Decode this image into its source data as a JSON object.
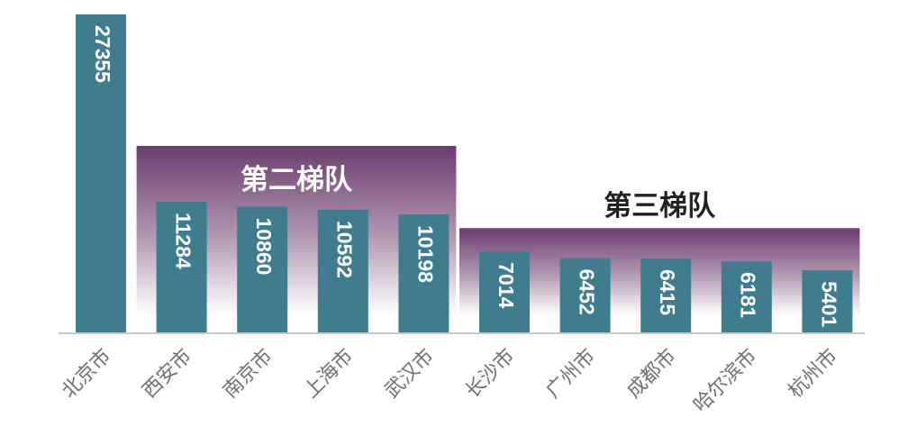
{
  "chart_data": {
    "type": "bar",
    "title": "",
    "xlabel": "",
    "ylabel": "",
    "categories": [
      "北京市",
      "西安市",
      "南京市",
      "上海市",
      "武汉市",
      "长沙市",
      "广州市",
      "成都市",
      "哈尔滨市",
      "杭州市"
    ],
    "values": [
      27355,
      11284,
      10860,
      10592,
      10198,
      7014,
      6452,
      6415,
      6181,
      5401
    ],
    "ylim": [
      0,
      27355
    ],
    "grid": false,
    "bar_color": "#3f7d8e",
    "value_label_color": "#ffffff",
    "annotations": [
      {
        "text": "第二梯队",
        "start_index": 1,
        "end_index": 4,
        "gradient_top": "#6a3d6e",
        "gradient_bottom": "#ffffff",
        "text_color": "#ffffff"
      },
      {
        "text": "第三梯队",
        "start_index": 5,
        "end_index": 9,
        "gradient_top": "#6a3d6e",
        "gradient_bottom": "#ffffff",
        "text_color": "#222222"
      }
    ]
  }
}
